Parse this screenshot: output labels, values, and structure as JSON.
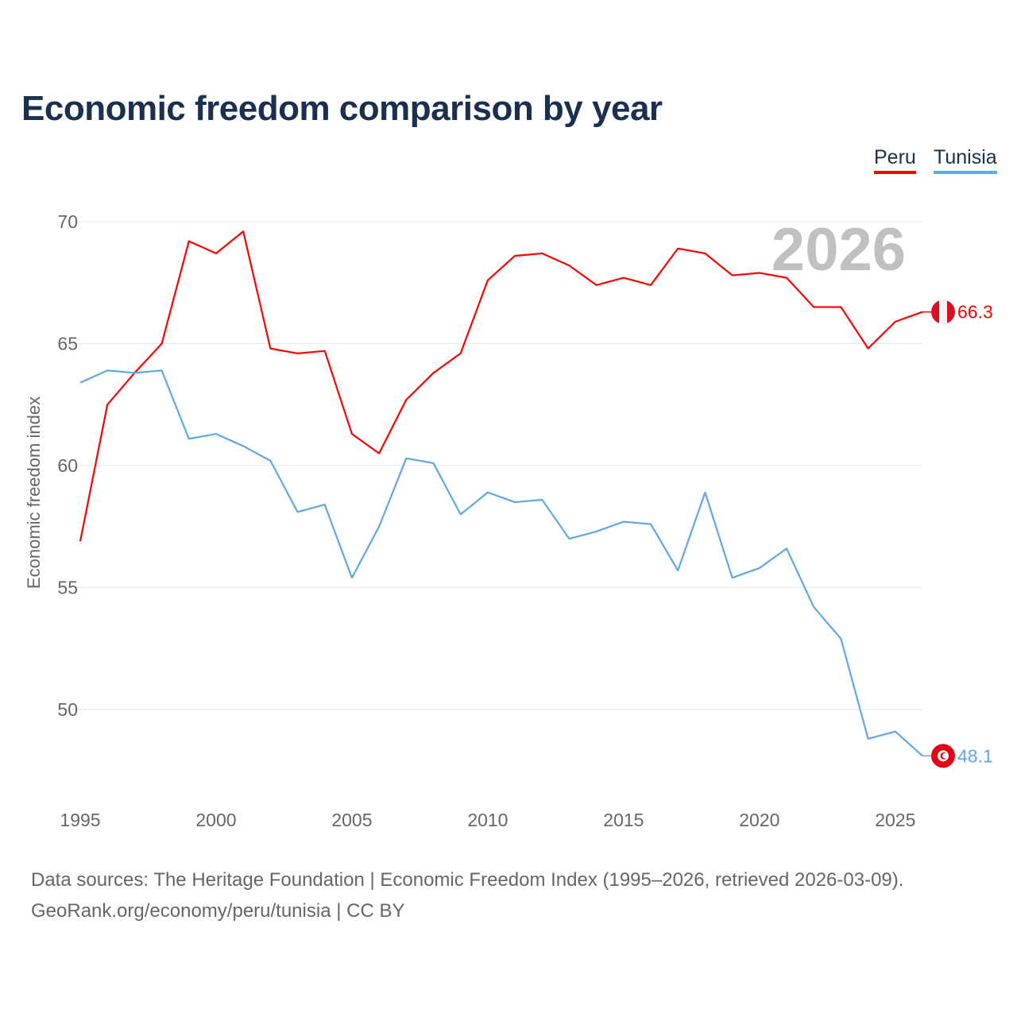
{
  "chart_data": {
    "type": "line",
    "title": "Economic freedom comparison by year",
    "xlabel": "",
    "ylabel": "Economic freedom index",
    "watermark_year": "2026",
    "x": [
      1995,
      1996,
      1997,
      1998,
      1999,
      2000,
      2001,
      2002,
      2003,
      2004,
      2005,
      2006,
      2007,
      2008,
      2009,
      2010,
      2011,
      2012,
      2013,
      2014,
      2015,
      2016,
      2017,
      2018,
      2019,
      2020,
      2021,
      2022,
      2023,
      2024,
      2025,
      2026
    ],
    "xticks": [
      "1995",
      "2000",
      "2005",
      "2010",
      "2015",
      "2020",
      "2025"
    ],
    "yticks": [
      "50",
      "55",
      "60",
      "65",
      "70"
    ],
    "ylim": [
      46.2,
      72
    ],
    "xlim": [
      1995,
      2026
    ],
    "grid": true,
    "legend": "top-right",
    "series": [
      {
        "name": "Peru",
        "color": "#ff0000",
        "end_label": "66.3",
        "flag": "peru-flag",
        "values": [
          56.9,
          62.5,
          63.8,
          65.0,
          69.2,
          68.7,
          69.6,
          64.8,
          64.6,
          64.7,
          61.3,
          60.5,
          62.7,
          63.8,
          64.6,
          67.6,
          68.6,
          68.7,
          68.2,
          67.4,
          67.7,
          67.4,
          68.9,
          68.7,
          67.8,
          67.9,
          67.7,
          66.5,
          66.5,
          64.8,
          65.9,
          66.3
        ]
      },
      {
        "name": "Tunisia",
        "color": "#5ea7ea",
        "end_label": "48.1",
        "flag": "tunisia-flag",
        "values": [
          63.4,
          63.9,
          63.8,
          63.9,
          61.1,
          61.3,
          60.8,
          60.2,
          58.1,
          58.4,
          55.4,
          57.5,
          60.3,
          60.1,
          58.0,
          58.9,
          58.5,
          58.6,
          57.0,
          57.3,
          57.7,
          57.6,
          55.7,
          58.9,
          55.4,
          55.8,
          56.6,
          54.2,
          52.9,
          48.8,
          49.1,
          48.1
        ]
      }
    ]
  },
  "footer": {
    "line1": "Data sources: The Heritage Foundation | Economic Freedom Index (1995–2026, retrieved 2026-03-09).",
    "line2": "GeoRank.org/economy/peru/tunisia | CC BY"
  }
}
